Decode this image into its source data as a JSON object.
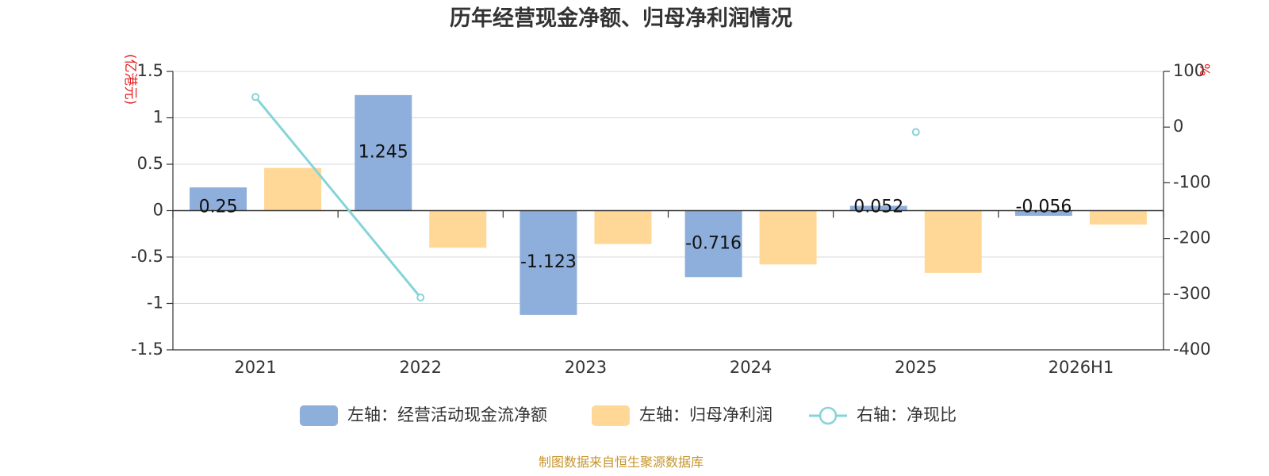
{
  "title": "历年经营现金净额、归母净利润情况",
  "source": "制图数据来自恒生聚源数据库",
  "chart_data": {
    "type": "bar",
    "categories": [
      "2021",
      "2022",
      "2023",
      "2024",
      "2025",
      "2026H1"
    ],
    "left_axis": {
      "unit": "(亿港元)",
      "ylim": [
        -1.5,
        1.5
      ],
      "ticks": [
        "1.5",
        "1",
        "0.5",
        "0",
        "-0.5",
        "-1",
        "-1.5"
      ]
    },
    "right_axis": {
      "unit": "%",
      "ylim": [
        -400,
        100
      ],
      "ticks": [
        "100",
        "0",
        "-100",
        "-200",
        "-300",
        "-400"
      ]
    },
    "series": [
      {
        "name": "左轴：经营活动现金流净额",
        "type": "bar",
        "axis": "left",
        "color": "#8eaedb",
        "values": [
          0.25,
          1.245,
          -1.123,
          -0.716,
          0.052,
          -0.056
        ],
        "labels": [
          "0.25",
          "1.245",
          "-1.123",
          "-0.716",
          "0.052",
          "-0.056"
        ]
      },
      {
        "name": "左轴：归母净利润",
        "type": "bar",
        "axis": "left",
        "color": "#ffd898",
        "values": [
          0.46,
          -0.4,
          -0.36,
          -0.58,
          -0.67,
          -0.15
        ]
      },
      {
        "name": "右轴：净现比",
        "type": "line",
        "axis": "right",
        "color": "#86d4d8",
        "values": [
          54,
          -306,
          null,
          null,
          -9,
          null
        ]
      }
    ],
    "grid": true,
    "legend_position": "bottom"
  }
}
